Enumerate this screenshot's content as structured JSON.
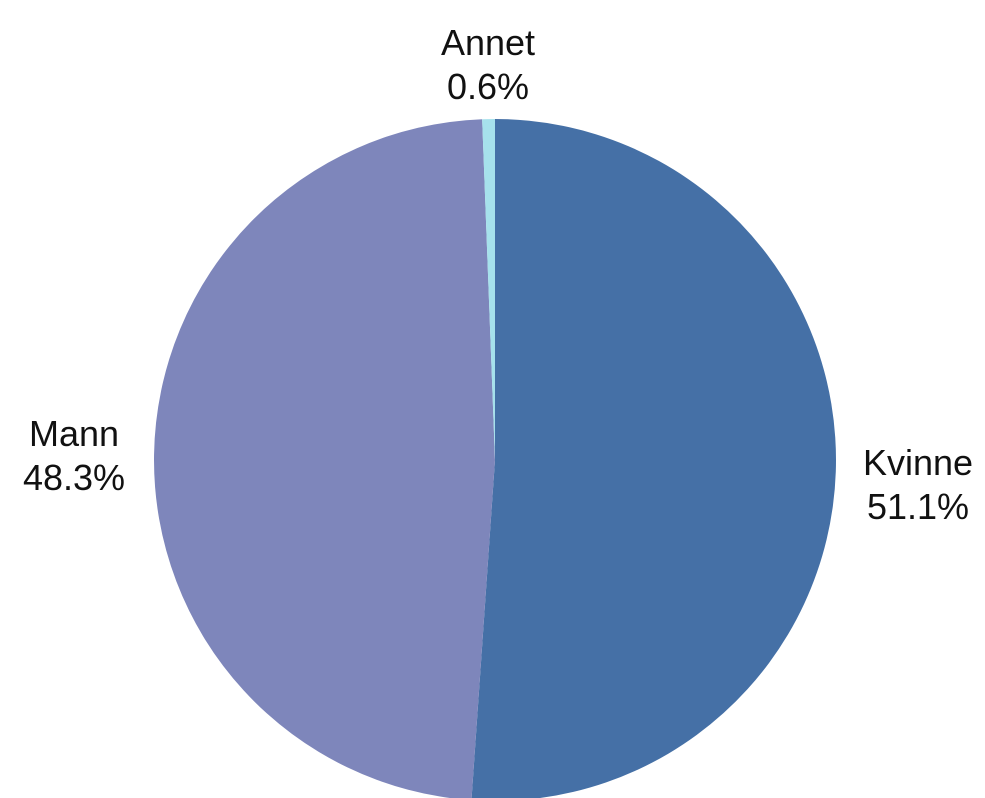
{
  "chart_data": {
    "type": "pie",
    "title": "",
    "slices": [
      {
        "label": "Kvinne",
        "value": 51.1,
        "value_label": "51.1%",
        "color": "#4570a6"
      },
      {
        "label": "Mann",
        "value": 48.3,
        "value_label": "48.3%",
        "color": "#7e86bb"
      },
      {
        "label": "Annet",
        "value": 0.6,
        "value_label": "0.6%",
        "color": "#a6e1ec"
      }
    ],
    "start_angle_deg": 0,
    "direction": "clockwise",
    "legend": "none"
  }
}
